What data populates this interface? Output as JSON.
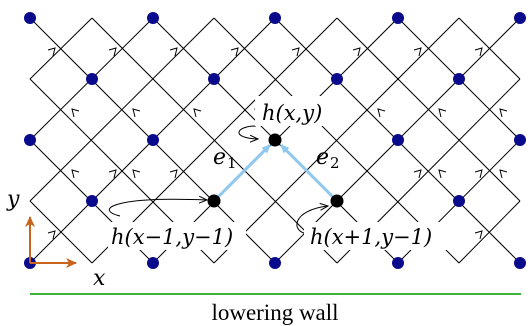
{
  "labels": {
    "center": "h(x,y)",
    "left": "h(x−1,y−1)",
    "right": "h(x+1,y−1)",
    "e1": "e",
    "e1_sub": "1",
    "e2": "e",
    "e2_sub": "2",
    "axis_x": "x",
    "axis_y": "y",
    "wall": "lowering wall"
  },
  "colors": {
    "lattice_line": "#000000",
    "site": "#0a0a8c",
    "active_site": "#000000",
    "vector": "#8ec8ee",
    "axis": "#c8641e",
    "wall": "#3cb43c"
  }
}
